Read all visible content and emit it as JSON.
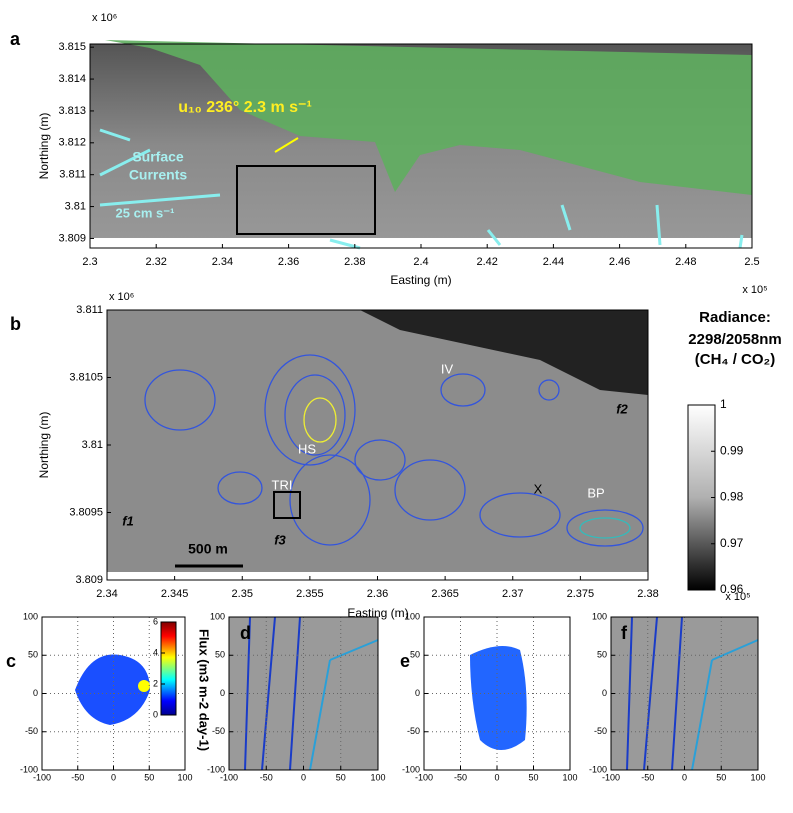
{
  "chart_data": [
    {
      "type": "map",
      "panel_label": "a",
      "xlabel": "Easting (m)",
      "ylabel": "Northing (m)",
      "x_multiplier": "x 10⁵",
      "y_multiplier": "x 10⁶",
      "xlim": [
        2.3,
        2.5
      ],
      "ylim": [
        3.8087,
        3.8151
      ],
      "xticks": [
        2.3,
        2.32,
        2.34,
        2.36,
        2.38,
        2.4,
        2.42,
        2.44,
        2.46,
        2.48,
        2.5
      ],
      "yticks": [
        3.809,
        3.81,
        3.811,
        3.812,
        3.813,
        3.814,
        3.815
      ],
      "annotations": [
        "u₁₀ 236° 2.3 m s⁻¹",
        "Surface",
        "Currents",
        "25 cm s⁻¹"
      ]
    },
    {
      "type": "map",
      "panel_label": "b",
      "xlabel": "Easting (m)",
      "ylabel": "Northing (m)",
      "x_multiplier": "x 10⁵",
      "y_multiplier": "x 10⁶",
      "xlim": [
        2.34,
        2.38
      ],
      "ylim": [
        3.809,
        3.811
      ],
      "xticks": [
        2.34,
        2.345,
        2.35,
        2.355,
        2.36,
        2.365,
        2.37,
        2.375,
        2.38
      ],
      "yticks": [
        3.809,
        3.8095,
        3.81,
        3.8105,
        3.811
      ],
      "annotations": [
        "IV",
        "HS",
        "TRI",
        "X",
        "BP",
        "f1",
        "f2",
        "f3",
        "500 m"
      ],
      "colorbar": {
        "title": [
          "Radiance:",
          "2298/2058nm",
          "(CH₄ / CO₂)"
        ],
        "lim": [
          0.96,
          1
        ],
        "ticks": [
          0.96,
          0.97,
          0.98,
          0.99,
          1
        ]
      }
    },
    {
      "type": "map",
      "panel_label": "c",
      "grid": true,
      "xlim": [
        -100,
        100
      ],
      "ylim": [
        -100,
        100
      ],
      "xticks": [
        -100,
        -50,
        0,
        50,
        100
      ],
      "yticks": [
        -100,
        -50,
        0,
        50,
        100
      ],
      "colorbar": {
        "title": [
          "Flux (m3 m-2 day-1)"
        ],
        "lim": [
          0,
          6
        ],
        "ticks": [
          0,
          2,
          4,
          6
        ]
      }
    },
    {
      "type": "map",
      "panel_label": "d",
      "grid": true,
      "xlim": [
        -100,
        100
      ],
      "ylim": [
        -100,
        100
      ],
      "xticks": [
        -100,
        -50,
        0,
        50,
        100
      ],
      "yticks": [
        -100,
        -50,
        0,
        50,
        100
      ]
    },
    {
      "type": "map",
      "panel_label": "e",
      "grid": true,
      "xlim": [
        -100,
        100
      ],
      "ylim": [
        -100,
        100
      ],
      "xticks": [
        -100,
        -50,
        0,
        50,
        100
      ],
      "yticks": [
        -100,
        -50,
        0,
        50,
        100
      ]
    },
    {
      "type": "map",
      "panel_label": "f",
      "grid": true,
      "xlim": [
        -100,
        100
      ],
      "ylim": [
        -100,
        100
      ],
      "xticks": [
        -100,
        -50,
        0,
        50,
        100
      ],
      "yticks": [
        -100,
        -50,
        0,
        50,
        100
      ]
    }
  ]
}
